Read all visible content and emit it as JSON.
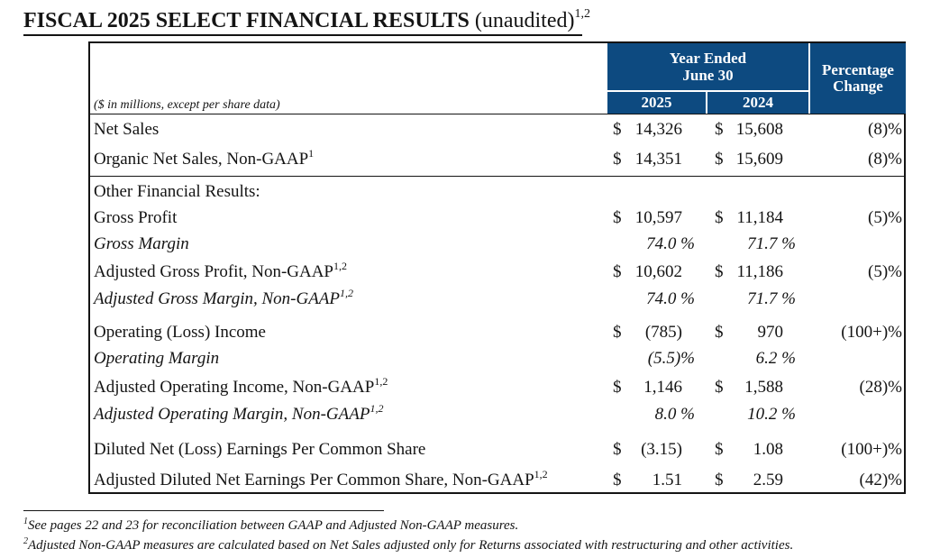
{
  "title": {
    "main": "FISCAL 2025 SELECT FINANCIAL RESULTS",
    "suffix": "(unaudited)",
    "superscript": "1,2"
  },
  "header": {
    "units_note": "($ in millions, except per share data)",
    "year_ended_line1": "Year Ended",
    "year_ended_line2": "June 30",
    "col_2025": "2025",
    "col_2024": "2024",
    "pct_line1": "Percentage",
    "pct_line2": "Change"
  },
  "rows": [
    {
      "label": "Net Sales",
      "sup": "",
      "d1": "$",
      "v1": "14,326",
      "d2": "$",
      "v2": "15,608",
      "pct": "(8)%"
    },
    {
      "label": "Organic Net Sales, Non-GAAP",
      "sup": "1",
      "d1": "$",
      "v1": "14,351",
      "d2": "$",
      "v2": "15,609",
      "pct": "(8)%"
    },
    {
      "label": "Other Financial Results:"
    },
    {
      "label": "Gross Profit",
      "sup": "",
      "d1": "$",
      "v1": "10,597",
      "d2": "$",
      "v2": "11,184",
      "pct": "(5)%"
    },
    {
      "label": "Gross Margin",
      "sup": "",
      "p1": "74.0 %",
      "p2": "71.7 %"
    },
    {
      "label": "Adjusted Gross Profit, Non-GAAP",
      "sup": "1,2",
      "d1": "$",
      "v1": "10,602",
      "d2": "$",
      "v2": "11,186",
      "pct": "(5)%"
    },
    {
      "label": "Adjusted Gross Margin, Non-GAAP",
      "sup": "1,2",
      "p1": "74.0 %",
      "p2": "71.7 %"
    },
    {
      "label": "Operating (Loss) Income",
      "sup": "",
      "d1": "$",
      "v1": "(785)",
      "d2": "$",
      "v2": "970",
      "pct": "(100+)%"
    },
    {
      "label": "Operating Margin",
      "sup": "",
      "p1": "(5.5)%",
      "p2": "6.2 %"
    },
    {
      "label": "Adjusted Operating Income, Non-GAAP",
      "sup": "1,2",
      "d1": "$",
      "v1": "1,146",
      "d2": "$",
      "v2": "1,588",
      "pct": "(28)%"
    },
    {
      "label": "Adjusted Operating Margin, Non-GAAP",
      "sup": "1,2",
      "p1": "8.0 %",
      "p2": "10.2 %"
    },
    {
      "label": "Diluted Net (Loss) Earnings Per Common Share",
      "sup": "",
      "d1": "$",
      "v1": "(3.15)",
      "d2": "$",
      "v2": "1.08",
      "pct": "(100+)%"
    },
    {
      "label": "Adjusted Diluted Net Earnings Per Common Share, Non-GAAP",
      "sup": "1,2",
      "d1": "$",
      "v1": "1.51",
      "d2": "$",
      "v2": "2.59",
      "pct": "(42)%"
    }
  ],
  "footnotes": [
    {
      "mark": "1",
      "text": "See pages 22 and 23 for reconciliation between GAAP and Adjusted Non-GAAP measures."
    },
    {
      "mark": "2",
      "text": "Adjusted Non-GAAP measures are calculated based on Net Sales adjusted only for Returns associated with restructuring and other activities."
    }
  ],
  "colors": {
    "header_bg": "#0d4a80",
    "header_text": "#ffffff",
    "text": "#141414"
  }
}
